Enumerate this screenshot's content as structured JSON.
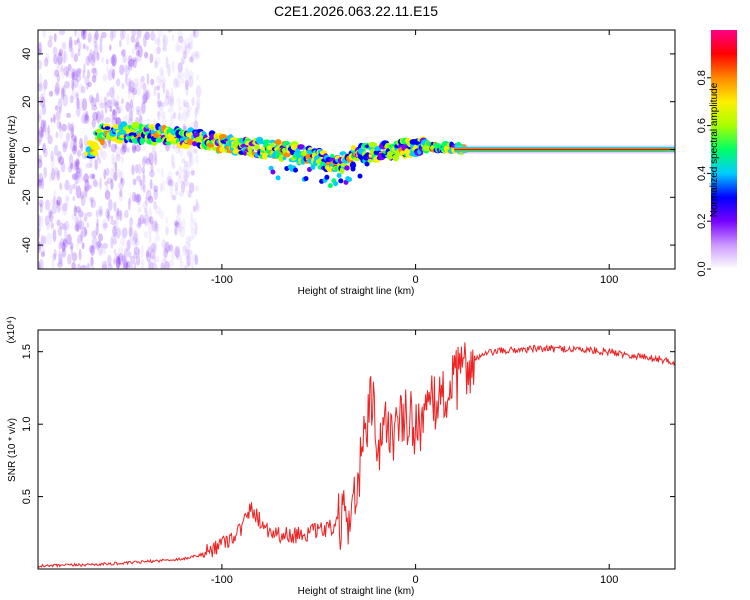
{
  "figure": {
    "title": "C2E1.2026.063.22.11.E15"
  },
  "chart_data": [
    {
      "type": "heatmap",
      "name": "spectrogram",
      "xlabel": "Height of straight line (km)",
      "ylabel": "Frequency (Hz)",
      "xlim": [
        -195,
        134
      ],
      "ylim": [
        -50,
        50
      ],
      "x_ticks": [
        -100,
        0,
        100
      ],
      "y_ticks": [
        -40,
        -20,
        0,
        20,
        40
      ],
      "ridge": {
        "x": [
          -165,
          -150,
          -130,
          -110,
          -90,
          -70,
          -55,
          -40,
          -30,
          -20,
          -10,
          0,
          10,
          20,
          134
        ],
        "y": [
          6,
          7,
          6,
          4,
          1,
          0,
          -3,
          -6,
          -2,
          -1,
          0,
          1,
          1,
          0.3,
          0
        ]
      },
      "noise_region_x": [
        -195,
        -120
      ],
      "colorbar": {
        "label": "Normalized spectral amplitude",
        "range": [
          0.0,
          1.0
        ],
        "ticks": [
          0.0,
          0.2,
          0.4,
          0.6,
          0.8
        ],
        "tick_labels": [
          "0.0",
          "0.2",
          "0.4",
          "0.6",
          "0.8"
        ],
        "colors": [
          "#ffffff",
          "#cc99ff",
          "#7700ff",
          "#0000ff",
          "#00ccff",
          "#00ff66",
          "#aaff00",
          "#ffee00",
          "#ff8800",
          "#ff0000",
          "#ff0088"
        ]
      }
    },
    {
      "type": "line",
      "name": "snr",
      "xlabel": "Height of straight line (km)",
      "ylabel": "SNR (10 * v/v)",
      "scale_label": "(x10⁴)",
      "xlim": [
        -195,
        134
      ],
      "ylim": [
        0,
        1.65
      ],
      "x_ticks": [
        -100,
        0,
        100
      ],
      "y_ticks": [
        0.5,
        1.0,
        1.5
      ],
      "y_tick_labels": [
        "0.5",
        "1.0",
        "1.5"
      ],
      "line_color": "#ee2222",
      "series": [
        {
          "name": "SNR",
          "x": [
            -195,
            -170,
            -150,
            -140,
            -130,
            -120,
            -110,
            -105,
            -100,
            -95,
            -90,
            -85,
            -80,
            -75,
            -70,
            -65,
            -60,
            -55,
            -50,
            -45,
            -40,
            -35,
            -30,
            -28,
            -25,
            -22,
            -20,
            -18,
            -15,
            -10,
            -5,
            0,
            5,
            10,
            15,
            20,
            25,
            30,
            40,
            50,
            60,
            70,
            80,
            90,
            100,
            110,
            120,
            134
          ],
          "y": [
            0.02,
            0.03,
            0.04,
            0.05,
            0.06,
            0.07,
            0.1,
            0.14,
            0.18,
            0.22,
            0.28,
            0.42,
            0.33,
            0.26,
            0.24,
            0.23,
            0.24,
            0.25,
            0.26,
            0.28,
            0.3,
            0.38,
            0.55,
            0.75,
            1.0,
            1.2,
            0.65,
            0.85,
            1.0,
            0.95,
            1.05,
            1.0,
            1.05,
            1.15,
            1.2,
            1.28,
            1.38,
            1.45,
            1.5,
            1.51,
            1.52,
            1.52,
            1.52,
            1.51,
            1.5,
            1.48,
            1.46,
            1.43
          ]
        }
      ]
    }
  ]
}
